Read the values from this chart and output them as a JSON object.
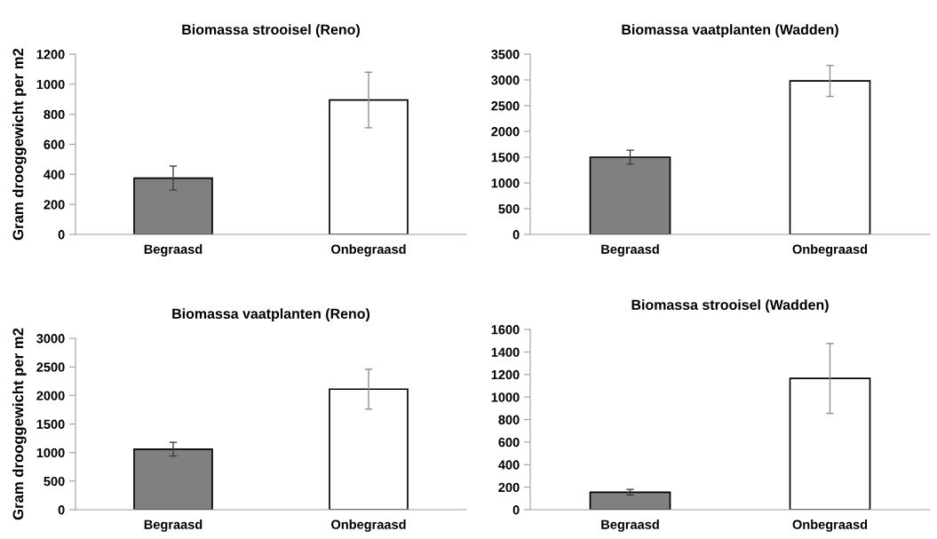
{
  "chart_data": [
    {
      "type": "bar",
      "title": "Biomassa strooisel (Reno)",
      "ylabel": "Gram drooggewicht per m2",
      "categories": [
        "Begraasd",
        "Onbegraasd"
      ],
      "values": [
        375,
        895
      ],
      "errors": [
        80,
        185
      ],
      "colors": [
        "#808080",
        "#ffffff"
      ],
      "ylim": [
        0,
        1200
      ],
      "yticks": [
        0,
        200,
        400,
        600,
        800,
        1000,
        1200
      ],
      "grid": false,
      "legend": false
    },
    {
      "type": "bar",
      "title": "Biomassa vaatplanten (Wadden)",
      "categories": [
        "Begraasd",
        "Onbegraasd"
      ],
      "values": [
        1500,
        2980
      ],
      "errors": [
        135,
        300
      ],
      "colors": [
        "#808080",
        "#ffffff"
      ],
      "ylim": [
        0,
        3500
      ],
      "yticks": [
        0,
        500,
        1000,
        1500,
        2000,
        2500,
        3000,
        3500
      ],
      "grid": false,
      "legend": false
    },
    {
      "type": "bar",
      "title": "Biomassa vaatplanten (Reno)",
      "ylabel": "Gram drooggewicht per m2",
      "categories": [
        "Begraasd",
        "Onbegraasd"
      ],
      "values": [
        1060,
        2110
      ],
      "errors": [
        120,
        350
      ],
      "colors": [
        "#808080",
        "#ffffff"
      ],
      "ylim": [
        0,
        3000
      ],
      "yticks": [
        0,
        500,
        1000,
        1500,
        2000,
        2500,
        3000
      ],
      "grid": false,
      "legend": false
    },
    {
      "type": "bar",
      "title": "Biomassa strooisel (Wadden)",
      "categories": [
        "Begraasd",
        "Onbegraasd"
      ],
      "values": [
        155,
        1165
      ],
      "errors": [
        25,
        310
      ],
      "colors": [
        "#808080",
        "#ffffff"
      ],
      "ylim": [
        0,
        1600
      ],
      "yticks": [
        0,
        200,
        400,
        600,
        800,
        1000,
        1200,
        1400,
        1600
      ],
      "grid": false,
      "legend": false
    }
  ]
}
